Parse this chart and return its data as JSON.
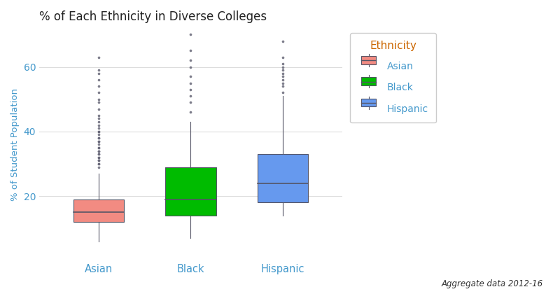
{
  "title": "% of Each Ethnicity in Diverse Colleges",
  "ylabel": "% of Student Population",
  "caption": "Aggregate data 2012-16",
  "categories": [
    "Asian",
    "Black",
    "Hispanic"
  ],
  "box_colors": [
    "#F28B82",
    "#00BB00",
    "#6699EE"
  ],
  "legend_title": "Ethnicity",
  "legend_labels": [
    "Asian",
    "Black",
    "Hispanic"
  ],
  "legend_colors": [
    "#F28B82",
    "#00BB00",
    "#6699EE"
  ],
  "background_color": "#FFFFFF",
  "grid_color": "#DDDDDD",
  "whisker_color": "#555566",
  "median_color": "#555566",
  "flier_color": "#666677",
  "tick_label_color": "#4499CC",
  "axis_label_color": "#4499CC",
  "title_color": "#222222",
  "legend_title_color": "#CC6600",
  "caption_color": "#333333",
  "ylim": [
    0,
    72
  ],
  "yticks": [
    20,
    40,
    60
  ],
  "box_width": 0.55,
  "Asian": {
    "q1": 12,
    "median": 15,
    "q3": 19,
    "whisker_low": 6,
    "whisker_high": 27,
    "outliers": [
      29,
      30,
      30,
      31,
      31,
      32,
      32,
      33,
      33,
      34,
      34,
      35,
      35,
      36,
      37,
      37,
      38,
      38,
      39,
      40,
      40,
      41,
      42,
      43,
      44,
      45,
      47,
      49,
      50,
      52,
      54,
      56,
      58,
      59,
      63
    ]
  },
  "Black": {
    "q1": 14,
    "median": 19,
    "q3": 29,
    "whisker_low": 7,
    "whisker_high": 43,
    "outliers": [
      46,
      49,
      51,
      53,
      55,
      57,
      60,
      62,
      65,
      70
    ]
  },
  "Hispanic": {
    "q1": 18,
    "median": 24,
    "q3": 33,
    "whisker_low": 14,
    "whisker_high": 51,
    "outliers": [
      52,
      54,
      55,
      56,
      57,
      58,
      59,
      60,
      61,
      63,
      68
    ]
  }
}
